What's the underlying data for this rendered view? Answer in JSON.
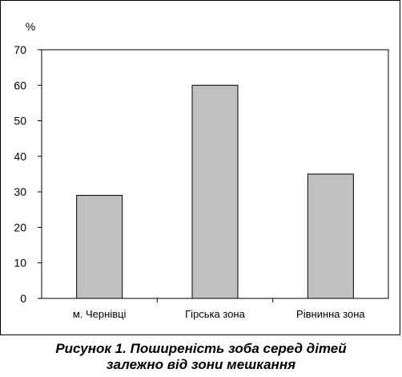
{
  "chart_data": {
    "type": "bar",
    "categories": [
      "м. Чернівці",
      "Гірська зона",
      "Рівнинна зона"
    ],
    "values": [
      29,
      60,
      35
    ],
    "ylabel": "%",
    "ylim": [
      0,
      70
    ],
    "yticks": [
      0,
      10,
      20,
      30,
      40,
      50,
      60,
      70
    ],
    "grid": false,
    "bar_color": "#c0c0c0"
  },
  "caption": {
    "line1": "Рисунок 1. Поширеність зоба серед дітей",
    "line2": "залежно від зони мешкання"
  }
}
